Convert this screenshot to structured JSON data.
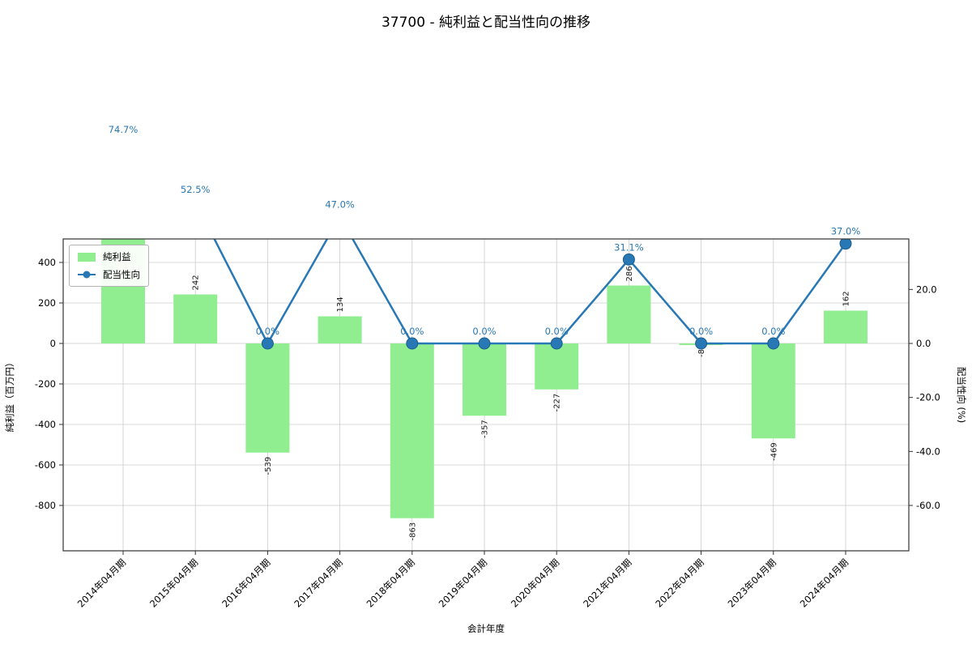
{
  "title": "37700 - 純利益と配当性向の推移",
  "legend": {
    "items": [
      {
        "label": "純利益",
        "marker": "bar-swatch"
      },
      {
        "label": "配当性向",
        "marker": "line-marker-swatch"
      }
    ]
  },
  "colors": {
    "bar": "#90ee90",
    "line": "#2878b5",
    "marker_edge": "#1b5e8f",
    "annotation": "#2878b5",
    "grid": "#cccccc",
    "spine": "#333333",
    "text": "#000000"
  },
  "chart_data": {
    "type": "bar+line",
    "title": "37700 - 純利益と配当性向の推移",
    "xlabel": "会計年度",
    "ylabel_left": "純利益（百万円）",
    "ylabel_right": "配当性向 (%)",
    "categories": [
      "2014年04月期",
      "2015年04月期",
      "2016年04月期",
      "2017年04月期",
      "2018年04月期",
      "2019年04月期",
      "2020年04月期",
      "2021年04月期",
      "2022年04月期",
      "2023年04月期",
      "2024年04月期"
    ],
    "series": [
      {
        "name": "純利益",
        "type": "bar",
        "y_axis": "left",
        "unit": "百万円",
        "values": [
          520,
          242,
          -539,
          134,
          -863,
          -357,
          -227,
          286,
          -8,
          -469,
          162
        ],
        "value_labels": [
          "",
          "242",
          "-539",
          "134",
          "-863",
          "-357",
          "-227",
          "286",
          "-8",
          "-469",
          "162"
        ]
      },
      {
        "name": "配当性向",
        "type": "line",
        "y_axis": "right",
        "unit": "%",
        "values": [
          74.7,
          52.5,
          0.0,
          47.0,
          0.0,
          0.0,
          0.0,
          31.1,
          0.0,
          0.0,
          37.0
        ],
        "value_labels": [
          "74.7%",
          "52.5%",
          "0.0%",
          "47.0%",
          "0.0%",
          "0.0%",
          "0.0%",
          "31.1%",
          "0.0%",
          "0.0%",
          "37.0%"
        ]
      }
    ],
    "y_left_ticks": [
      "400",
      "200",
      "0",
      "-200",
      "-400",
      "-600",
      "-800"
    ],
    "y_right_ticks": [
      "20.0",
      "0.0",
      "-20.0",
      "-40.0",
      "-60.0"
    ],
    "ylim_left": [
      -1024,
      516
    ],
    "ylim_right": [
      -76.8,
      38.7
    ],
    "grid": true,
    "legend_position": "upper left"
  }
}
